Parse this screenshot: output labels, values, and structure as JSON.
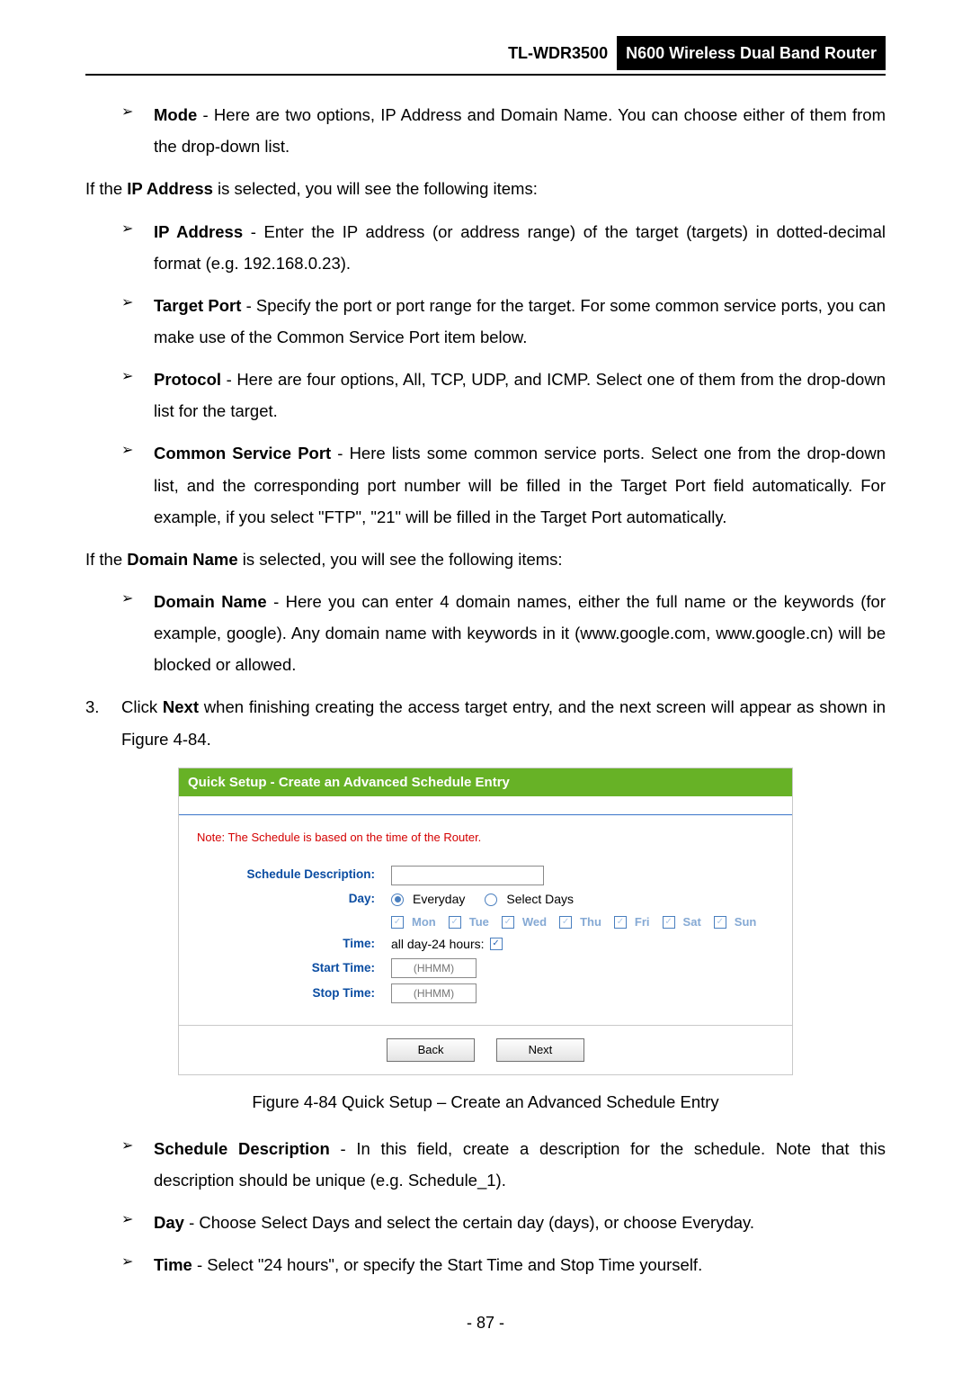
{
  "header": {
    "model": "TL-WDR3500",
    "product": "N600 Wireless Dual Band Router"
  },
  "items": {
    "mode": {
      "label": "Mode",
      "text": " - Here are two options, IP Address and Domain Name. You can choose either of them from the drop-down list."
    },
    "ip_sel": "If the <b>IP Address</b> is selected, you will see the following items:",
    "ip_addr": {
      "label": "IP Address",
      "text": " - Enter the IP address (or address range) of the target (targets) in dotted-decimal format (e.g. 192.168.0.23)."
    },
    "tport": {
      "label": "Target Port",
      "text": " - Specify the port or port range for the target. For some common service ports, you can make use of the Common Service Port item below."
    },
    "proto": {
      "label": "Protocol",
      "text": " - Here are four options, All, TCP, UDP, and ICMP. Select one of them from the drop-down list for the target."
    },
    "csp": {
      "label": "Common Service Port",
      "text": " - Here lists some common service ports. Select one from the drop-down list, and the corresponding port number will be filled in the Target Port field automatically. For example, if you select \"FTP\", \"21\" will be filled in the Target Port automatically."
    },
    "dn_sel": "If the <b>Domain Name</b> is selected, you will see the following items:",
    "dname": {
      "label": "Domain Name",
      "text": " - Here you can enter 4 domain names, either the full name or the keywords (for example, google). Any domain name with keywords in it (www.google.com, www.google.cn) will be blocked or allowed."
    },
    "step3": "Click <b>Next</b> when finishing creating the access target entry, and the next screen will appear as shown in Figure 4-84.",
    "caption": "Figure 4-84 Quick Setup – Create an Advanced Schedule Entry",
    "sdesc": {
      "label": "Schedule Description",
      "text": " - In this field, create a description for the schedule. Note that this description should be unique (e.g. Schedule_1)."
    },
    "day": {
      "label": "Day",
      "text": " - Choose Select Days and select the certain day (days), or choose Everyday."
    },
    "time": {
      "label": "Time",
      "text": " - Select \"24 hours\", or specify the Start Time and Stop Time yourself."
    }
  },
  "panel": {
    "title": "Quick Setup - Create an Advanced Schedule Entry",
    "note": "Note: The Schedule is based on the time of the Router.",
    "labels": {
      "sched": "Schedule Description:",
      "day": "Day:",
      "time": "Time:",
      "start": "Start Time:",
      "stop": "Stop Time:"
    },
    "radio1": "Everyday",
    "radio2": "Select Days",
    "days": [
      "Mon",
      "Tue",
      "Wed",
      "Thu",
      "Fri",
      "Sat",
      "Sun"
    ],
    "time_text": "all day-24 hours:",
    "hhmm": "(HHMM)",
    "back": "Back",
    "next": "Next"
  },
  "pagenum": "- 87 -"
}
